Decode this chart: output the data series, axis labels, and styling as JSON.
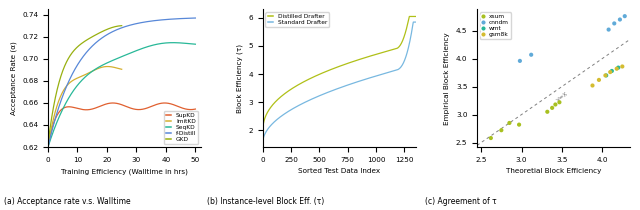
{
  "panel_a": {
    "xlabel": "Training Efficiency (Walltime in hrs)",
    "ylabel": "Acceptance Rate (α)",
    "ylim": [
      0.62,
      0.745
    ],
    "xlim": [
      0,
      52
    ],
    "lines": {
      "SupKD": {
        "color": "#e06030"
      },
      "ImitKD": {
        "color": "#d4b030"
      },
      "SeqKD": {
        "color": "#28b898"
      },
      "f-Distill": {
        "color": "#5888d8"
      },
      "GKD": {
        "color": "#98b010"
      }
    }
  },
  "panel_b": {
    "xlabel": "Sorted Test Data Index",
    "ylabel": "Block Efficiency (τ)",
    "ylim": [
      1.4,
      6.3
    ],
    "xlim": [
      0,
      1350
    ],
    "yticks": [
      2,
      3,
      4,
      5,
      6
    ],
    "lines": {
      "Distilled Drafter": {
        "color": "#b0c018"
      },
      "Standard Drafter": {
        "color": "#78b8e0"
      }
    }
  },
  "panel_c": {
    "xlabel": "Theoretial Block Efficiency",
    "ylabel": "Empirical Block Efficiency",
    "xlim": [
      2.45,
      4.35
    ],
    "ylim": [
      2.42,
      4.88
    ],
    "diagonal_label": "y=x",
    "scatter": {
      "xsum": {
        "color": "#a8c020",
        "x": [
          2.62,
          2.75,
          2.85,
          2.97,
          3.32,
          3.38,
          3.42,
          3.47
        ],
        "y": [
          2.58,
          2.72,
          2.85,
          2.82,
          3.05,
          3.12,
          3.18,
          3.22
        ]
      },
      "cnndm": {
        "color": "#60aad8",
        "x": [
          2.98,
          3.12,
          4.08,
          4.15,
          4.22,
          4.28
        ],
        "y": [
          3.96,
          4.07,
          4.52,
          4.63,
          4.7,
          4.76
        ]
      },
      "wmt": {
        "color": "#28b898",
        "x": [
          4.05,
          4.12,
          4.2
        ],
        "y": [
          3.7,
          3.78,
          3.84
        ]
      },
      "gsm8k": {
        "color": "#d4bc30",
        "x": [
          3.88,
          3.96,
          4.04,
          4.1,
          4.18,
          4.25
        ],
        "y": [
          3.52,
          3.62,
          3.7,
          3.76,
          3.82,
          3.86
        ]
      }
    }
  },
  "sublabels": [
    "(a) Acceptance rate v.s. Walltime",
    "(b) Instance-level Block Eff. (τ)",
    "(c) Agreement of τ"
  ]
}
